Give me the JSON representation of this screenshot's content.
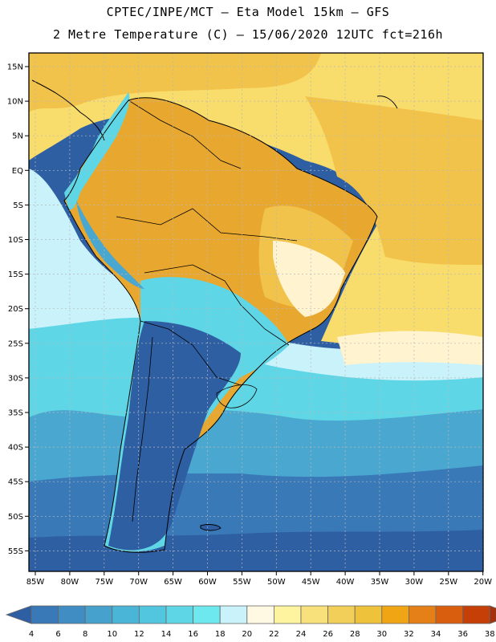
{
  "header": {
    "title_line1": "CPTEC/INPE/MCT –  Eta Model 15km – GFS",
    "title_line2": "2 Metre Temperature (C) – 15/06/2020 12UTC fct=216h"
  },
  "map": {
    "lat_labels": [
      "15N",
      "10N",
      "5N",
      "EQ",
      "5S",
      "10S",
      "15S",
      "20S",
      "25S",
      "30S",
      "35S",
      "40S",
      "45S",
      "50S",
      "55S"
    ],
    "lon_labels": [
      "85W",
      "80W",
      "75W",
      "70W",
      "65W",
      "60W",
      "55W",
      "50W",
      "45W",
      "40W",
      "35W",
      "30W",
      "25W",
      "20W"
    ],
    "colors": {
      "cold_deep": "#2f5fa3",
      "cold": "#3a79b8",
      "mid_blue": "#4aa7d0",
      "cyan": "#5fd6e6",
      "light_cyan": "#c9f2fb",
      "pale_yellow": "#fff4cf",
      "yellow": "#f8dc6c",
      "gold": "#f2c34a",
      "orange": "#e8a72e"
    }
  },
  "colorbar": {
    "labels": [
      "4",
      "6",
      "8",
      "10",
      "12",
      "14",
      "16",
      "18",
      "20",
      "22",
      "24",
      "26",
      "28",
      "30",
      "32",
      "34",
      "36",
      "38"
    ],
    "colors": [
      "#2f5fa3",
      "#3a79b8",
      "#3f8dc2",
      "#46a2cd",
      "#4ab5d6",
      "#53c6df",
      "#5fd6e6",
      "#6ee8ef",
      "#c9f2fb",
      "#fff8e3",
      "#fef4a0",
      "#f8e07a",
      "#f2cf58",
      "#efc23b",
      "#f0a514",
      "#e57f17",
      "#d95f0e",
      "#c63f07",
      "#a4320c"
    ]
  }
}
